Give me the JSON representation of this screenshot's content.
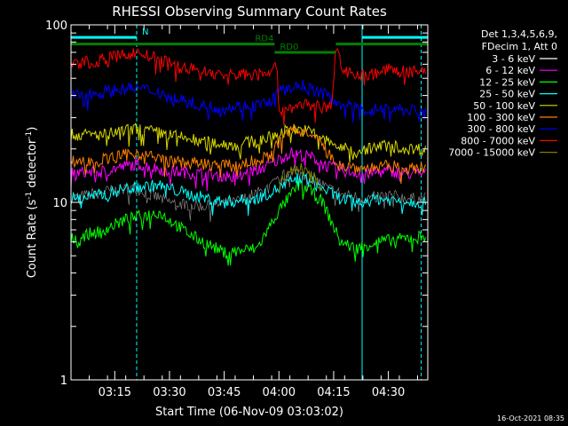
{
  "chart_data": {
    "type": "line",
    "title": "RHESSI Observing Summary Count Rates",
    "xlabel": "Start Time (06-Nov-09 03:03:02)",
    "ylabel_main": "Count Rate (s",
    "ylabel_sup1": "-1",
    "ylabel_mid": " detector",
    "ylabel_sup2": "-1",
    "ylabel_end": ")",
    "y_scale": "log",
    "ylim": [
      1,
      100
    ],
    "y_ticks": [
      {
        "value": 1,
        "label": "1"
      },
      {
        "value": 10,
        "label": "10"
      },
      {
        "value": 100,
        "label": "100"
      }
    ],
    "xlim_min": [
      3.05,
      4.68
    ],
    "x_ticks": [
      {
        "value": 3.25,
        "label": "03:15"
      },
      {
        "value": 3.5,
        "label": "03:30"
      },
      {
        "value": 3.75,
        "label": "03:45"
      },
      {
        "value": 4.0,
        "label": "04:00"
      },
      {
        "value": 4.25,
        "label": "04:15"
      },
      {
        "value": 4.5,
        "label": "04:30"
      }
    ],
    "legend_header": [
      "Det 1,3,4,5,6,9,",
      "FDecim 1, Att 0"
    ],
    "legend_position": "right",
    "series": [
      {
        "name": "3 - 6 keV",
        "color": "#000000",
        "x": [
          3.05,
          3.2,
          3.35,
          3.5,
          3.65,
          3.8,
          3.95,
          4.05,
          4.15,
          4.22,
          4.3,
          4.4,
          4.5,
          4.6,
          4.67
        ],
        "y": [
          10.5,
          11.5,
          12,
          10,
          9.5,
          10,
          12,
          15,
          14,
          12,
          11,
          10.5,
          11,
          10.5,
          10.5
        ]
      },
      {
        "name": "6 - 12 keV",
        "color": "#ff00ff",
        "x": [
          3.05,
          3.2,
          3.35,
          3.5,
          3.65,
          3.8,
          3.95,
          4.05,
          4.15,
          4.22,
          4.3,
          4.4,
          4.5,
          4.6,
          4.67
        ],
        "y": [
          14.5,
          15,
          16.5,
          15,
          14.5,
          14,
          16,
          19,
          18,
          16,
          15,
          14.5,
          15,
          14.5,
          14.5
        ]
      },
      {
        "name": "12 - 25 keV",
        "color": "#00ff00",
        "x": [
          3.05,
          3.2,
          3.3,
          3.45,
          3.6,
          3.75,
          3.9,
          4.0,
          4.1,
          4.2,
          4.28,
          4.35,
          4.45,
          4.55,
          4.67
        ],
        "y": [
          6.2,
          7,
          8,
          8.8,
          6.5,
          5.2,
          5.5,
          9,
          13,
          10,
          6,
          5.5,
          6,
          6.2,
          6.5
        ]
      },
      {
        "name": "25 - 50 keV",
        "color": "#00ffff",
        "x": [
          3.05,
          3.2,
          3.3,
          3.45,
          3.6,
          3.75,
          3.9,
          4.0,
          4.1,
          4.2,
          4.28,
          4.35,
          4.45,
          4.55,
          4.67
        ],
        "y": [
          10.5,
          11,
          12,
          12.5,
          11,
          10,
          10.5,
          12,
          14,
          12,
          10.5,
          10,
          10.5,
          10.2,
          10
        ]
      },
      {
        "name": "50 - 100 keV",
        "color": "#d8d800",
        "x": [
          3.05,
          3.2,
          3.35,
          3.5,
          3.65,
          3.8,
          3.95,
          4.05,
          4.15,
          4.22,
          4.3,
          4.4,
          4.5,
          4.6,
          4.67
        ],
        "y": [
          24,
          24,
          26,
          24,
          22,
          21,
          23,
          26,
          25,
          22,
          20,
          20,
          21,
          20,
          20
        ]
      },
      {
        "name": "100 - 300 keV",
        "color": "#ff8000",
        "x": [
          3.05,
          3.2,
          3.35,
          3.5,
          3.65,
          3.8,
          3.95,
          4.05,
          4.15,
          4.22,
          4.3,
          4.4,
          4.5,
          4.6,
          4.67
        ],
        "y": [
          17,
          17.5,
          19,
          17,
          16.5,
          16,
          18,
          26,
          25,
          19,
          16,
          15.5,
          16,
          15.5,
          15.5
        ]
      },
      {
        "name": "300 - 800 keV",
        "color": "#0000ff",
        "x": [
          3.05,
          3.15,
          3.25,
          3.35,
          3.45,
          3.55,
          3.65,
          3.75,
          3.85,
          3.95,
          4.0,
          4.1,
          4.2,
          4.25,
          4.3,
          4.4,
          4.5,
          4.6,
          4.67
        ],
        "y": [
          40,
          41,
          43,
          44,
          42,
          38,
          35,
          34,
          35,
          36,
          42,
          46,
          41,
          38,
          35,
          33,
          34,
          33,
          33
        ]
      },
      {
        "name": "800 - 7000 keV",
        "color": "#ff0000",
        "x": [
          3.05,
          3.15,
          3.25,
          3.35,
          3.45,
          3.55,
          3.65,
          3.75,
          3.85,
          3.95,
          3.99,
          4.0,
          4.1,
          4.2,
          4.24,
          4.26,
          4.3,
          4.4,
          4.5,
          4.6,
          4.67
        ],
        "y": [
          60,
          62,
          66,
          70,
          64,
          58,
          55,
          52,
          53,
          55,
          58,
          33,
          36,
          34,
          35,
          72,
          55,
          52,
          56,
          54,
          55
        ]
      },
      {
        "name": "7000 - 15000 keV",
        "color": "#808000",
        "x": [
          4.0,
          4.05,
          4.1,
          4.15,
          4.2
        ],
        "y": [
          13,
          15,
          15.5,
          14,
          12
        ]
      }
    ],
    "status_bars": [
      {
        "label": "N",
        "color": "#00ffff",
        "segments": [
          [
            3.05,
            3.35
          ],
          [
            4.38,
            4.68
          ]
        ],
        "y_value": 85
      },
      {
        "label": "RD4",
        "color": "#008000",
        "segments": [
          [
            3.05,
            3.98
          ],
          [
            4.26,
            4.68
          ]
        ],
        "y_value": 78
      },
      {
        "label": "RD0",
        "color": "#008000",
        "segments": [
          [
            3.98,
            4.26
          ]
        ],
        "y_value": 70
      }
    ],
    "vertical_lines": [
      {
        "x": 3.05,
        "color": "#00ffff",
        "style": "solid"
      },
      {
        "x": 3.35,
        "color": "#00ffff",
        "style": "dashed"
      },
      {
        "x": 4.38,
        "color": "#00ffff",
        "style": "solid"
      },
      {
        "x": 4.65,
        "color": "#00ffff",
        "style": "dashed"
      }
    ]
  },
  "footer": {
    "timestamp": "16-Oct-2021 08:35"
  }
}
